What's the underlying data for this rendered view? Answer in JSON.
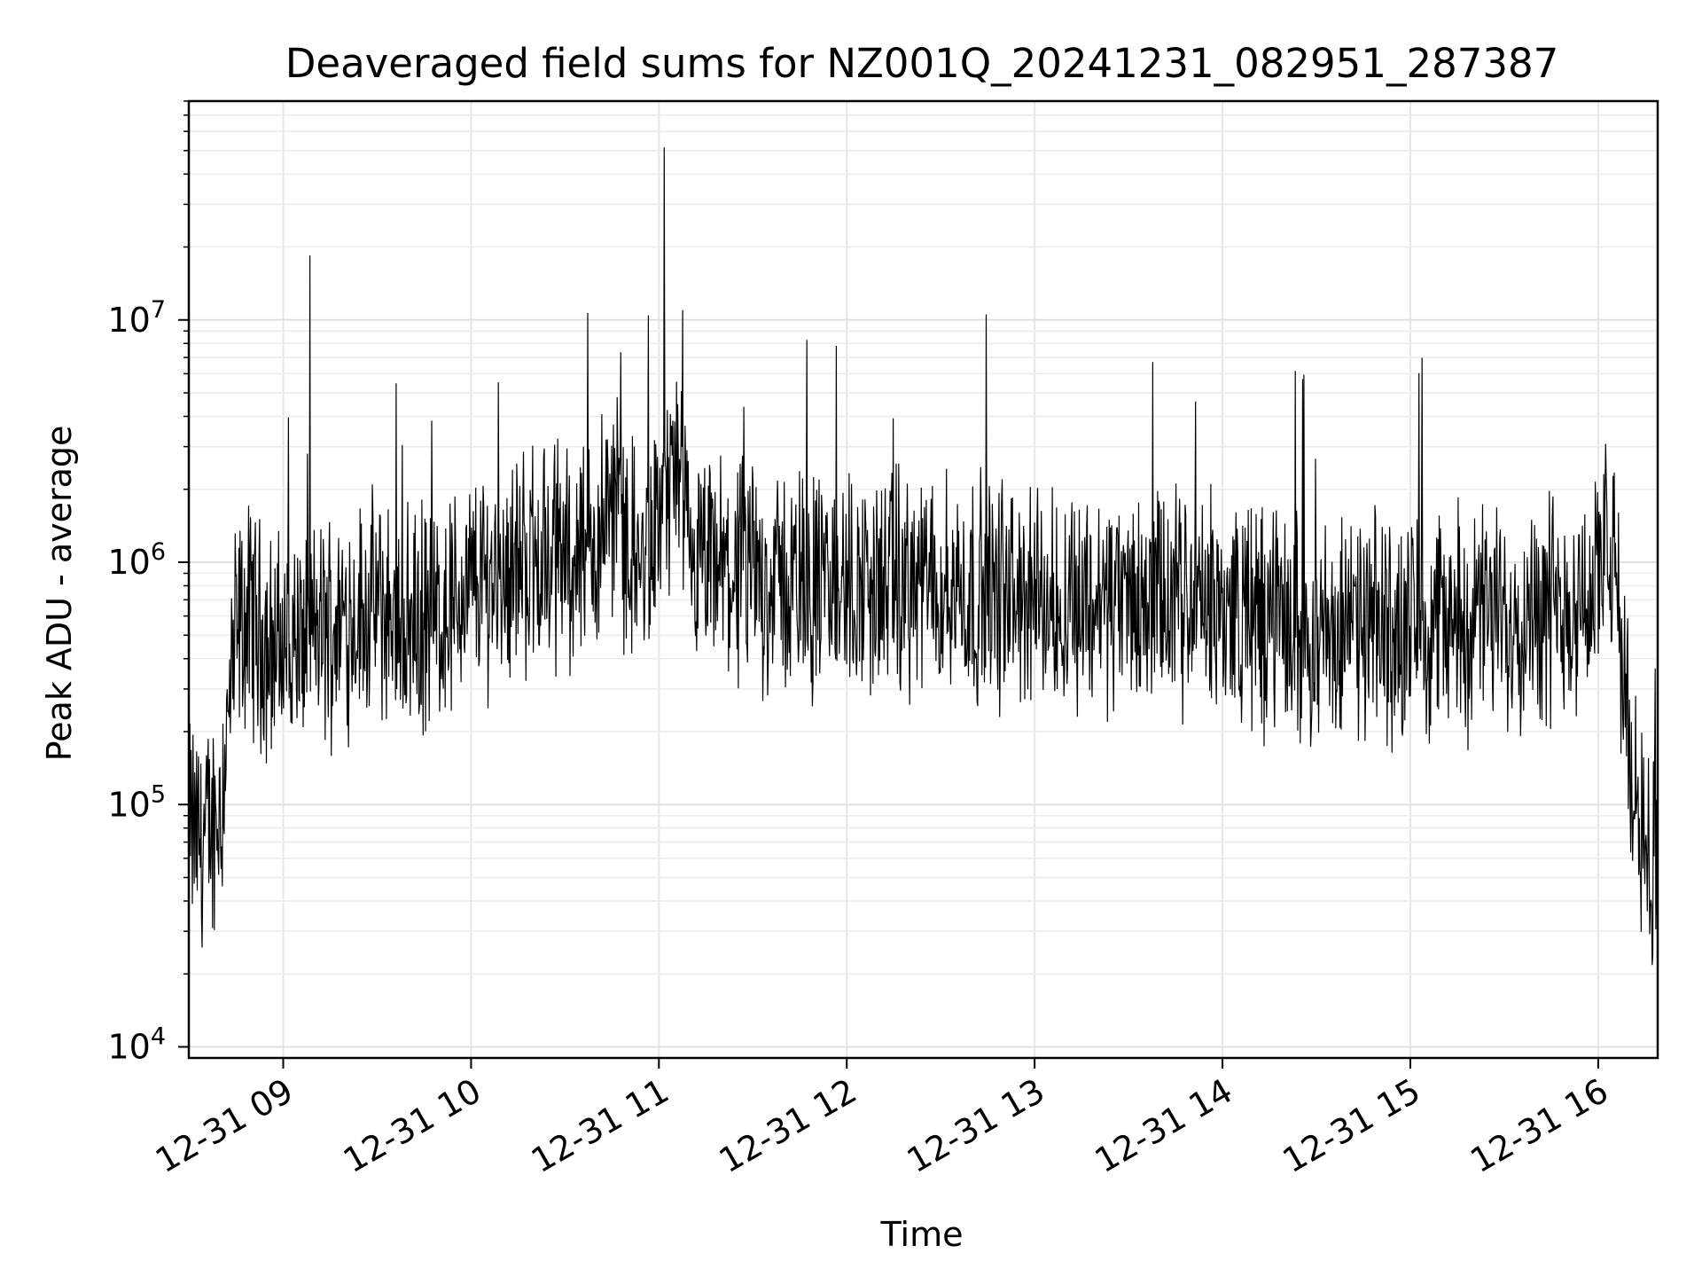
{
  "chart_data": {
    "type": "line",
    "title": "Deaveraged field sums for NZ001Q_20241231_082951_287387",
    "xlabel": "Time",
    "ylabel": "Peak ADU - average",
    "yscale": "log",
    "ylim": [
      9000,
      80000000
    ],
    "xlim": [
      "2024-12-31 08:29:51",
      "2024-12-31 16:19:00"
    ],
    "grid": true,
    "x_ticks": [
      {
        "value": "2024-12-31 09:00",
        "label": "12-31 09"
      },
      {
        "value": "2024-12-31 10:00",
        "label": "12-31 10"
      },
      {
        "value": "2024-12-31 11:00",
        "label": "12-31 11"
      },
      {
        "value": "2024-12-31 12:00",
        "label": "12-31 12"
      },
      {
        "value": "2024-12-31 13:00",
        "label": "12-31 13"
      },
      {
        "value": "2024-12-31 14:00",
        "label": "12-31 14"
      },
      {
        "value": "2024-12-31 15:00",
        "label": "12-31 15"
      },
      {
        "value": "2024-12-31 16:00",
        "label": "12-31 16"
      }
    ],
    "y_ticks": [
      {
        "value": 10000,
        "base": "10",
        "exp": "4"
      },
      {
        "value": 100000,
        "base": "10",
        "exp": "5"
      },
      {
        "value": 1000000,
        "base": "10",
        "exp": "6"
      },
      {
        "value": 10000000,
        "base": "10",
        "exp": "7"
      }
    ],
    "series_color": "#000000",
    "series": [
      {
        "x": [
          "2024-12-31 08:30",
          "2024-12-31 08:35",
          "2024-12-31 08:40",
          "2024-12-31 08:45",
          "2024-12-31 08:50",
          "2024-12-31 08:55",
          "2024-12-31 09:00",
          "2024-12-31 09:10",
          "2024-12-31 09:20",
          "2024-12-31 09:30",
          "2024-12-31 09:40",
          "2024-12-31 09:50",
          "2024-12-31 10:00",
          "2024-12-31 10:15",
          "2024-12-31 10:30",
          "2024-12-31 10:40",
          "2024-12-31 10:45",
          "2024-12-31 10:50",
          "2024-12-31 10:55",
          "2024-12-31 11:00",
          "2024-12-31 11:05",
          "2024-12-31 11:10",
          "2024-12-31 11:20",
          "2024-12-31 11:35",
          "2024-12-31 11:50",
          "2024-12-31 12:00",
          "2024-12-31 12:30",
          "2024-12-31 13:00",
          "2024-12-31 13:30",
          "2024-12-31 14:00",
          "2024-12-31 14:30",
          "2024-12-31 15:00",
          "2024-12-31 15:30",
          "2024-12-31 15:55",
          "2024-12-31 16:05",
          "2024-12-31 16:10",
          "2024-12-31 16:19"
        ],
        "y": [
          80000,
          70000,
          100000,
          500000,
          600000,
          450000,
          450000,
          500000,
          600000,
          650000,
          550000,
          600000,
          800000,
          1000000,
          1100000,
          1100000,
          2000000,
          1200000,
          900000,
          1500000,
          2500000,
          900000,
          900000,
          850000,
          800000,
          800000,
          800000,
          700000,
          700000,
          650000,
          500000,
          550000,
          600000,
          700000,
          1100000,
          150000,
          50000
        ]
      }
    ]
  }
}
